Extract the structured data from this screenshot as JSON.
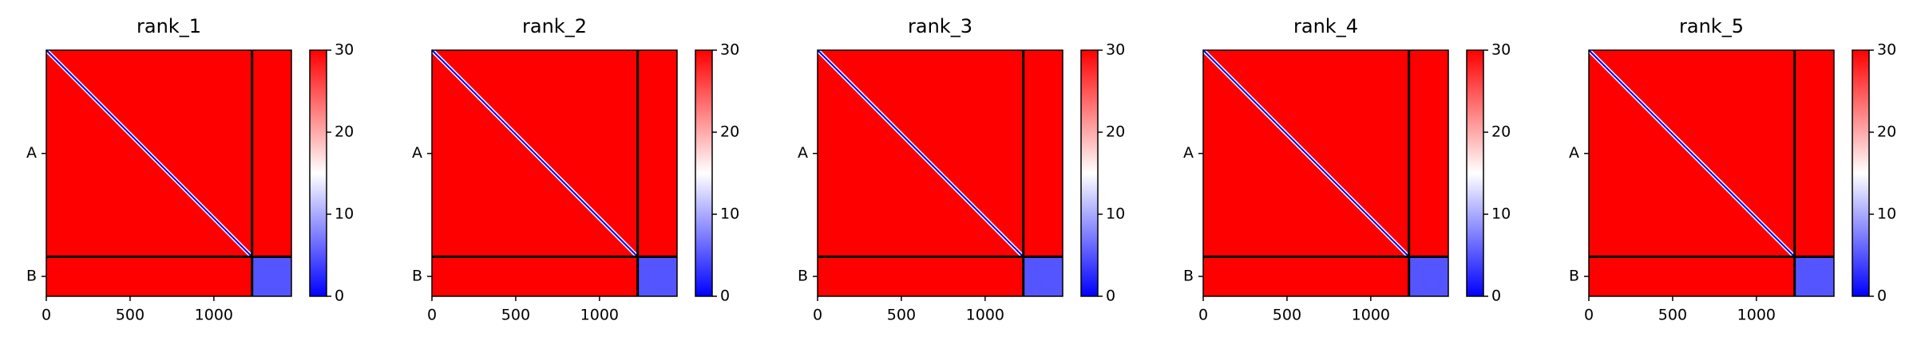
{
  "chart_data": [
    {
      "type": "heatmap",
      "title": "rank_1",
      "xlim": [
        0,
        1463
      ],
      "xticks": [
        0,
        500,
        1000
      ],
      "ylim": [
        1463,
        0
      ],
      "yticks": [
        {
          "value": 614,
          "label": "A"
        },
        {
          "value": 1345,
          "label": "B"
        }
      ],
      "chain_boundaries": [
        1228
      ],
      "values": [
        [
          30,
          30
        ],
        [
          30,
          5
        ]
      ],
      "clim": [
        0,
        30
      ],
      "cticks": [
        0,
        10,
        20,
        30
      ],
      "colormap": [
        "#0000ff",
        "#ffffff",
        "#ff0000"
      ]
    },
    {
      "type": "heatmap",
      "title": "rank_2",
      "xlim": [
        0,
        1463
      ],
      "xticks": [
        0,
        500,
        1000
      ],
      "ylim": [
        1463,
        0
      ],
      "yticks": [
        {
          "value": 614,
          "label": "A"
        },
        {
          "value": 1345,
          "label": "B"
        }
      ],
      "chain_boundaries": [
        1228
      ],
      "values": [
        [
          30,
          30
        ],
        [
          30,
          5
        ]
      ],
      "clim": [
        0,
        30
      ],
      "cticks": [
        0,
        10,
        20,
        30
      ],
      "colormap": [
        "#0000ff",
        "#ffffff",
        "#ff0000"
      ]
    },
    {
      "type": "heatmap",
      "title": "rank_3",
      "xlim": [
        0,
        1463
      ],
      "xticks": [
        0,
        500,
        1000
      ],
      "ylim": [
        1463,
        0
      ],
      "yticks": [
        {
          "value": 614,
          "label": "A"
        },
        {
          "value": 1345,
          "label": "B"
        }
      ],
      "chain_boundaries": [
        1228
      ],
      "values": [
        [
          30,
          30
        ],
        [
          30,
          5
        ]
      ],
      "clim": [
        0,
        30
      ],
      "cticks": [
        0,
        10,
        20,
        30
      ],
      "colormap": [
        "#0000ff",
        "#ffffff",
        "#ff0000"
      ]
    },
    {
      "type": "heatmap",
      "title": "rank_4",
      "xlim": [
        0,
        1463
      ],
      "xticks": [
        0,
        500,
        1000
      ],
      "ylim": [
        1463,
        0
      ],
      "yticks": [
        {
          "value": 614,
          "label": "A"
        },
        {
          "value": 1345,
          "label": "B"
        }
      ],
      "chain_boundaries": [
        1228
      ],
      "values": [
        [
          30,
          30
        ],
        [
          30,
          5
        ]
      ],
      "clim": [
        0,
        30
      ],
      "cticks": [
        0,
        10,
        20,
        30
      ],
      "colormap": [
        "#0000ff",
        "#ffffff",
        "#ff0000"
      ]
    },
    {
      "type": "heatmap",
      "title": "rank_5",
      "xlim": [
        0,
        1463
      ],
      "xticks": [
        0,
        500,
        1000
      ],
      "ylim": [
        1463,
        0
      ],
      "yticks": [
        {
          "value": 614,
          "label": "A"
        },
        {
          "value": 1345,
          "label": "B"
        }
      ],
      "chain_boundaries": [
        1228
      ],
      "values": [
        [
          30,
          30
        ],
        [
          30,
          5
        ]
      ],
      "clim": [
        0,
        30
      ],
      "cticks": [
        0,
        10,
        20,
        30
      ],
      "colormap": [
        "#0000ff",
        "#ffffff",
        "#ff0000"
      ]
    }
  ]
}
